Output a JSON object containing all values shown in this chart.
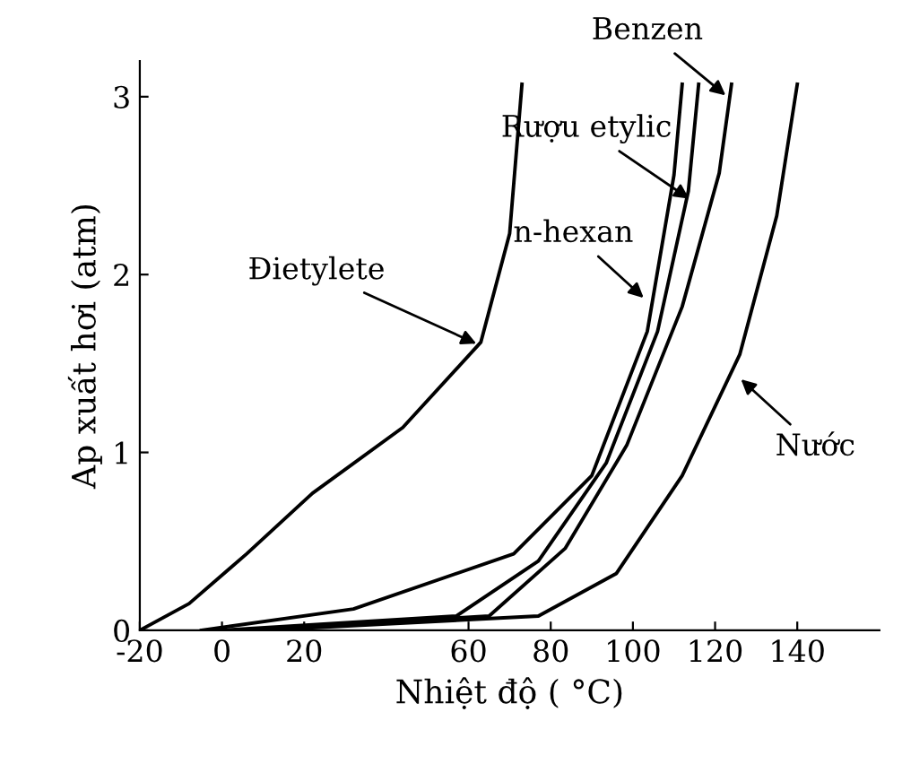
{
  "chart_data": {
    "type": "line",
    "xlabel": "Nhiệt độ ( °C)",
    "ylabel": "Ap xuất hơi (atm)",
    "xlim": [
      -20,
      160
    ],
    "ylim": [
      0,
      3.2
    ],
    "xticks": [
      -20,
      0,
      20,
      60,
      80,
      100,
      120,
      140
    ],
    "yticks": [
      0,
      1,
      2,
      3
    ],
    "grid": false,
    "legend": false,
    "marker": "none",
    "line_style": "solid",
    "series": [
      {
        "color": "#000000",
        "x": [
          -20,
          -8,
          6,
          22,
          44,
          63,
          70,
          73
        ],
        "values": [
          0,
          0.15,
          0.43,
          0.77,
          1.14,
          1.62,
          2.23,
          3.07
        ]
      },
      {
        "color": "#000000",
        "x": [
          -5,
          32,
          71,
          90,
          103.5,
          110,
          112
        ],
        "values": [
          0,
          0.12,
          0.43,
          0.87,
          1.68,
          2.56,
          3.07
        ]
      },
      {
        "color": "#000000",
        "x": [
          0,
          57,
          77,
          93.5,
          106,
          113.5,
          116
        ],
        "values": [
          0,
          0.08,
          0.39,
          0.94,
          1.68,
          2.47,
          3.07
        ]
      },
      {
        "color": "#000000",
        "x": [
          5,
          65,
          83.5,
          98.5,
          112,
          121,
          124
        ],
        "values": [
          0,
          0.08,
          0.46,
          1.04,
          1.82,
          2.57,
          3.07
        ]
      },
      {
        "color": "#000000",
        "x": [
          10,
          77,
          96,
          112,
          126,
          135,
          140
        ],
        "values": [
          0,
          0.08,
          0.32,
          0.87,
          1.55,
          2.33,
          3.07
        ]
      }
    ],
    "annotations": [
      {
        "text": "Đietylete",
        "x": 63,
        "y": 1.6
      },
      {
        "text": "Rượu etylic",
        "x": 114.7,
        "y": 2.41
      },
      {
        "text": "n-hexan",
        "x": 103.5,
        "y": 1.85
      },
      {
        "text": "Benzen",
        "x": 123.5,
        "y": 2.99
      },
      {
        "text": "Nước",
        "x": 125.4,
        "y": 1.43
      }
    ]
  }
}
